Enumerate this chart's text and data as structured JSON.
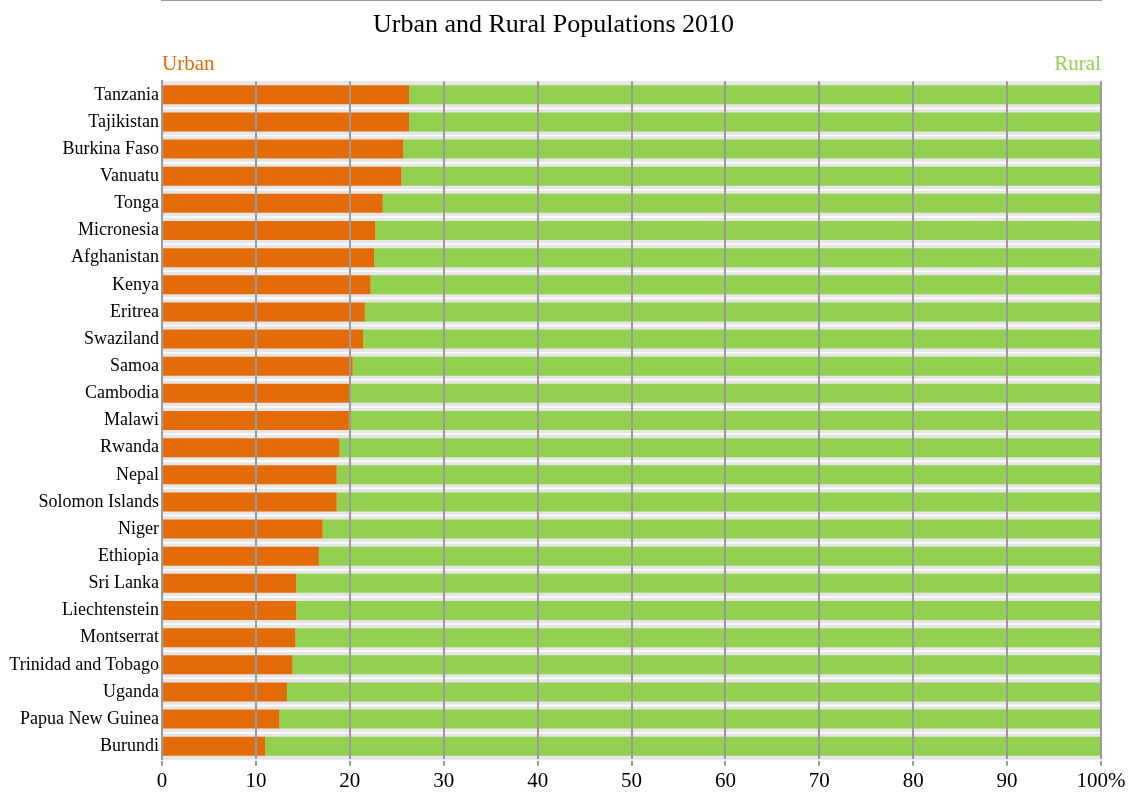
{
  "chart_data": {
    "type": "bar",
    "orientation": "horizontal",
    "stacked": true,
    "title": "Urban and Rural Populations 2010",
    "categories": [
      "Tanzania",
      "Tajikistan",
      "Burkina Faso",
      "Vanuatu",
      "Tonga",
      "Micronesia",
      "Afghanistan",
      "Kenya",
      "Eritrea",
      "Swaziland",
      "Samoa",
      "Cambodia",
      "Malawi",
      "Rwanda",
      "Nepal",
      "Solomon Islands",
      "Niger",
      "Ethiopia",
      "Sri Lanka",
      "Liechtenstein",
      "Montserrat",
      "Trinidad and Tobago",
      "Uganda",
      "Papua New Guinea",
      "Burundi"
    ],
    "series": [
      {
        "name": "Urban",
        "color": "#e36c09",
        "values": [
          26.3,
          26.3,
          25.7,
          25.5,
          23.5,
          22.7,
          22.6,
          22.2,
          21.6,
          21.4,
          20.3,
          20.0,
          19.9,
          18.9,
          18.6,
          18.6,
          17.1,
          16.7,
          14.3,
          14.3,
          14.2,
          13.9,
          13.3,
          12.5,
          11.0
        ]
      },
      {
        "name": "Rural",
        "color": "#92d050",
        "values": [
          73.7,
          73.7,
          74.3,
          74.5,
          76.5,
          77.3,
          77.4,
          77.8,
          78.4,
          78.6,
          79.7,
          80.0,
          80.1,
          81.1,
          81.4,
          81.4,
          82.9,
          83.3,
          85.7,
          85.7,
          85.8,
          86.1,
          86.7,
          87.5,
          89.0
        ]
      }
    ],
    "xlim": [
      0,
      100
    ],
    "xticks": [
      0,
      10,
      20,
      30,
      40,
      50,
      60,
      70,
      80,
      90,
      {
        "value": 100,
        "label": "100%"
      }
    ],
    "grid": "x",
    "legend": "top"
  }
}
